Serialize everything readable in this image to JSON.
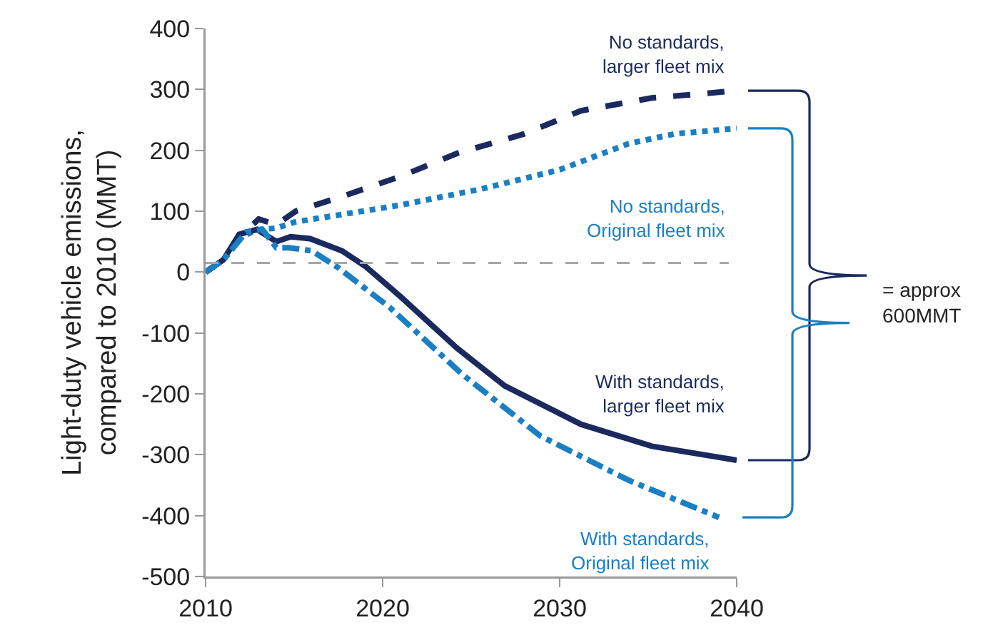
{
  "chart_data": {
    "type": "line",
    "ylabel": "Light-duty vehicle emissions, compared to 2010 (MMT)",
    "xlim": [
      2010,
      2040
    ],
    "xticks": [
      2010,
      2020,
      2030,
      2040
    ],
    "ylim": [
      -500,
      400
    ],
    "yticks": [
      -500,
      -400,
      -300,
      -200,
      -100,
      0,
      100,
      200,
      300,
      400
    ],
    "grid": false,
    "legend": false,
    "marker": "none",
    "series": [
      {
        "name": "No standards, larger fleet mix",
        "color": "#1b2a5e",
        "line_style": "dashed",
        "x": [
          2010,
          2011,
          2012,
          2013,
          2014,
          2015.1,
          2017.7,
          2021,
          2024.2,
          2028,
          2031.2,
          2035.2,
          2038.1,
          2040
        ],
        "values": [
          0,
          20,
          60,
          87,
          78,
          100,
          124,
          157,
          195,
          227,
          265,
          286,
          293,
          298
        ]
      },
      {
        "name": "No standards, Original fleet mix",
        "color": "#1a7fc4",
        "line_style": "dotted",
        "x": [
          2010,
          2011,
          2012,
          2013,
          2014,
          2015,
          2018,
          2021,
          2025.5,
          2030,
          2033.9,
          2036.5,
          2040
        ],
        "values": [
          0,
          20,
          58,
          70,
          72,
          82,
          96,
          110,
          136,
          168,
          211,
          227,
          236
        ]
      },
      {
        "name": "With standards, larger fleet mix",
        "color": "#1b2a5e",
        "line_style": "solid",
        "x": [
          2010,
          2011,
          2011.9,
          2012.9,
          2014,
          2014.8,
          2015.9,
          2017.7,
          2019,
          2021,
          2024.2,
          2026.9,
          2031.2,
          2035.2,
          2040
        ],
        "values": [
          0,
          20,
          62,
          70,
          50,
          58,
          55,
          35,
          10,
          -40,
          -125,
          -187,
          -250,
          -286,
          -309
        ]
      },
      {
        "name": "With standards, Original fleet mix",
        "color": "#1a7fc4",
        "line_style": "dashdot",
        "x": [
          2010,
          2011,
          2012.3,
          2013.2,
          2014,
          2014.7,
          2016,
          2017.5,
          2020.4,
          2024.5,
          2028.9,
          2033.9,
          2039
        ],
        "values": [
          0,
          20,
          66,
          70,
          40,
          40,
          35,
          7,
          -58,
          -168,
          -269,
          -342,
          -403
        ]
      }
    ],
    "ref_lines": [
      {
        "axis": "y",
        "value": 15,
        "color": "#a6a6a6",
        "line_style": "dashed"
      }
    ],
    "annotations": [
      "= approx 600MMT"
    ]
  }
}
